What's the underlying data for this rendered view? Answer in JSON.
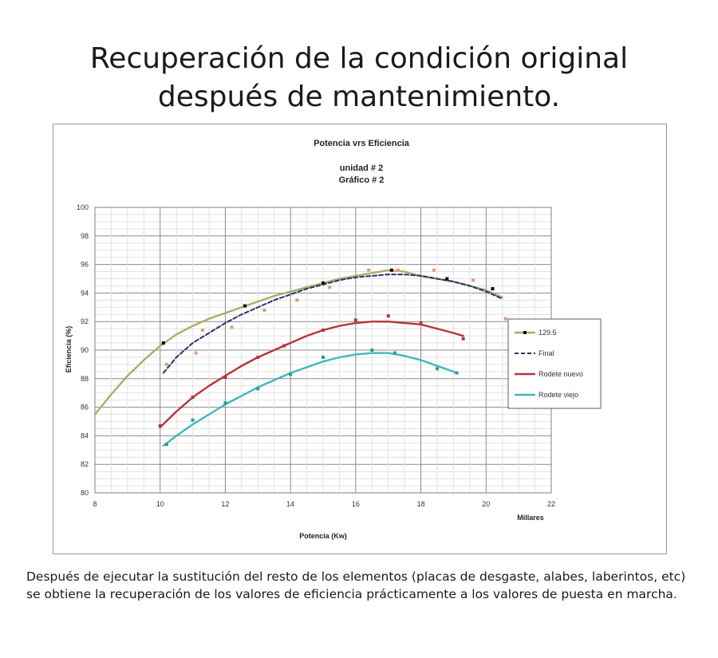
{
  "slide": {
    "title_line1": "Recuperación de la condición original",
    "title_line2": "después de mantenimiento.",
    "caption": "Después de ejecutar la sustitución del resto de los elementos (placas de desgaste, alabes, laberintos, etc) se obtiene la recuperación de los valores de eficiencia prácticamente a los valores de puesta en marcha."
  },
  "chart_data": {
    "type": "line",
    "title": "Potencia vrs Eficiencia",
    "subtitle_line1": "unidad # 2",
    "subtitle_line2": "Gráfico # 2",
    "xlabel": "Potencia (Kw)",
    "xunit_label": "Millares",
    "ylabel": "Eficiencia (%)",
    "xlim": [
      8,
      22
    ],
    "ylim": [
      80,
      100
    ],
    "xticks": [
      8,
      10,
      12,
      14,
      16,
      18,
      20,
      22
    ],
    "yticks": [
      80,
      82,
      84,
      86,
      88,
      90,
      92,
      94,
      96,
      98,
      100
    ],
    "grid": true,
    "legend_position": "right",
    "series": [
      {
        "name": "129.5",
        "color": "#a8ad6a",
        "dash": false,
        "marker_color": "#000000",
        "x": [
          8,
          8.5,
          9,
          9.5,
          10,
          10.5,
          11,
          11.5,
          12,
          12.5,
          13,
          13.5,
          14,
          14.5,
          15,
          15.5,
          16,
          16.5,
          17,
          17.5,
          18,
          18.5,
          19,
          19.5,
          20,
          20.5
        ],
        "y": [
          85.5,
          86.9,
          88.2,
          89.3,
          90.3,
          91.1,
          91.7,
          92.2,
          92.6,
          93.0,
          93.4,
          93.8,
          94.1,
          94.4,
          94.7,
          95.0,
          95.2,
          95.4,
          95.6,
          95.5,
          95.2,
          95.0,
          94.8,
          94.5,
          94.2,
          93.7
        ],
        "points_x": [
          10.1,
          12.6,
          15,
          17.1,
          18.8,
          20.2
        ],
        "points_y": [
          90.5,
          93.1,
          94.7,
          95.6,
          95.0,
          94.3
        ]
      },
      {
        "name": "Final",
        "color": "#2b2f6e",
        "dash": true,
        "marker_color": "#e29b7a",
        "x": [
          10.1,
          10.5,
          11,
          11.5,
          12,
          12.5,
          13,
          13.5,
          14,
          14.5,
          15,
          15.5,
          16,
          16.5,
          17,
          17.5,
          18,
          18.5,
          19,
          19.5,
          20,
          20.5
        ],
        "y": [
          88.4,
          89.5,
          90.5,
          91.2,
          91.9,
          92.5,
          93.0,
          93.5,
          93.9,
          94.3,
          94.6,
          94.9,
          95.1,
          95.2,
          95.3,
          95.3,
          95.2,
          95.0,
          94.8,
          94.5,
          94.1,
          93.6
        ],
        "points_x": [
          10.2,
          11.1,
          11.3,
          12.2,
          13.2,
          14.2,
          15.2,
          16.4,
          17.3,
          18.4,
          19.6,
          20.6
        ],
        "points_y": [
          89.0,
          89.8,
          91.4,
          91.6,
          92.8,
          93.5,
          94.4,
          95.6,
          95.6,
          95.6,
          94.9,
          92.2
        ]
      },
      {
        "name": "Rodete nuevo",
        "color": "#b5353a",
        "dash": false,
        "marker_color": "#b5353a",
        "x": [
          10,
          10.5,
          11,
          11.5,
          12,
          12.5,
          13,
          13.5,
          14,
          14.5,
          15,
          15.5,
          16,
          16.5,
          17,
          17.5,
          18,
          18.5,
          19,
          19.3
        ],
        "y": [
          84.6,
          85.7,
          86.7,
          87.5,
          88.2,
          88.9,
          89.5,
          90.0,
          90.5,
          91.0,
          91.4,
          91.7,
          91.9,
          92.0,
          92.0,
          91.9,
          91.8,
          91.5,
          91.2,
          91.0
        ],
        "points_x": [
          10,
          11,
          12,
          13,
          13.8,
          15,
          16,
          17,
          18,
          19.3
        ],
        "points_y": [
          84.7,
          86.7,
          88.1,
          89.5,
          90.3,
          91.4,
          92.1,
          92.4,
          91.9,
          90.8
        ]
      },
      {
        "name": "Rodete viejo",
        "color": "#3db8c0",
        "dash": false,
        "marker_color": "#2f9e7c",
        "x": [
          10.1,
          10.5,
          11,
          11.5,
          12,
          12.5,
          13,
          13.5,
          14,
          14.5,
          15,
          15.5,
          16,
          16.5,
          17,
          17.5,
          18,
          18.5,
          19,
          19.1
        ],
        "y": [
          83.3,
          84.0,
          84.8,
          85.5,
          86.2,
          86.8,
          87.4,
          87.9,
          88.4,
          88.8,
          89.2,
          89.5,
          89.7,
          89.8,
          89.8,
          89.6,
          89.3,
          88.9,
          88.5,
          88.4
        ],
        "points_x": [
          10.2,
          11,
          12,
          13,
          14,
          15,
          16.5,
          17.2,
          18.5,
          19.1
        ],
        "points_y": [
          83.4,
          85.1,
          86.3,
          87.3,
          88.3,
          89.5,
          90.0,
          89.8,
          88.7,
          88.4
        ]
      }
    ]
  }
}
